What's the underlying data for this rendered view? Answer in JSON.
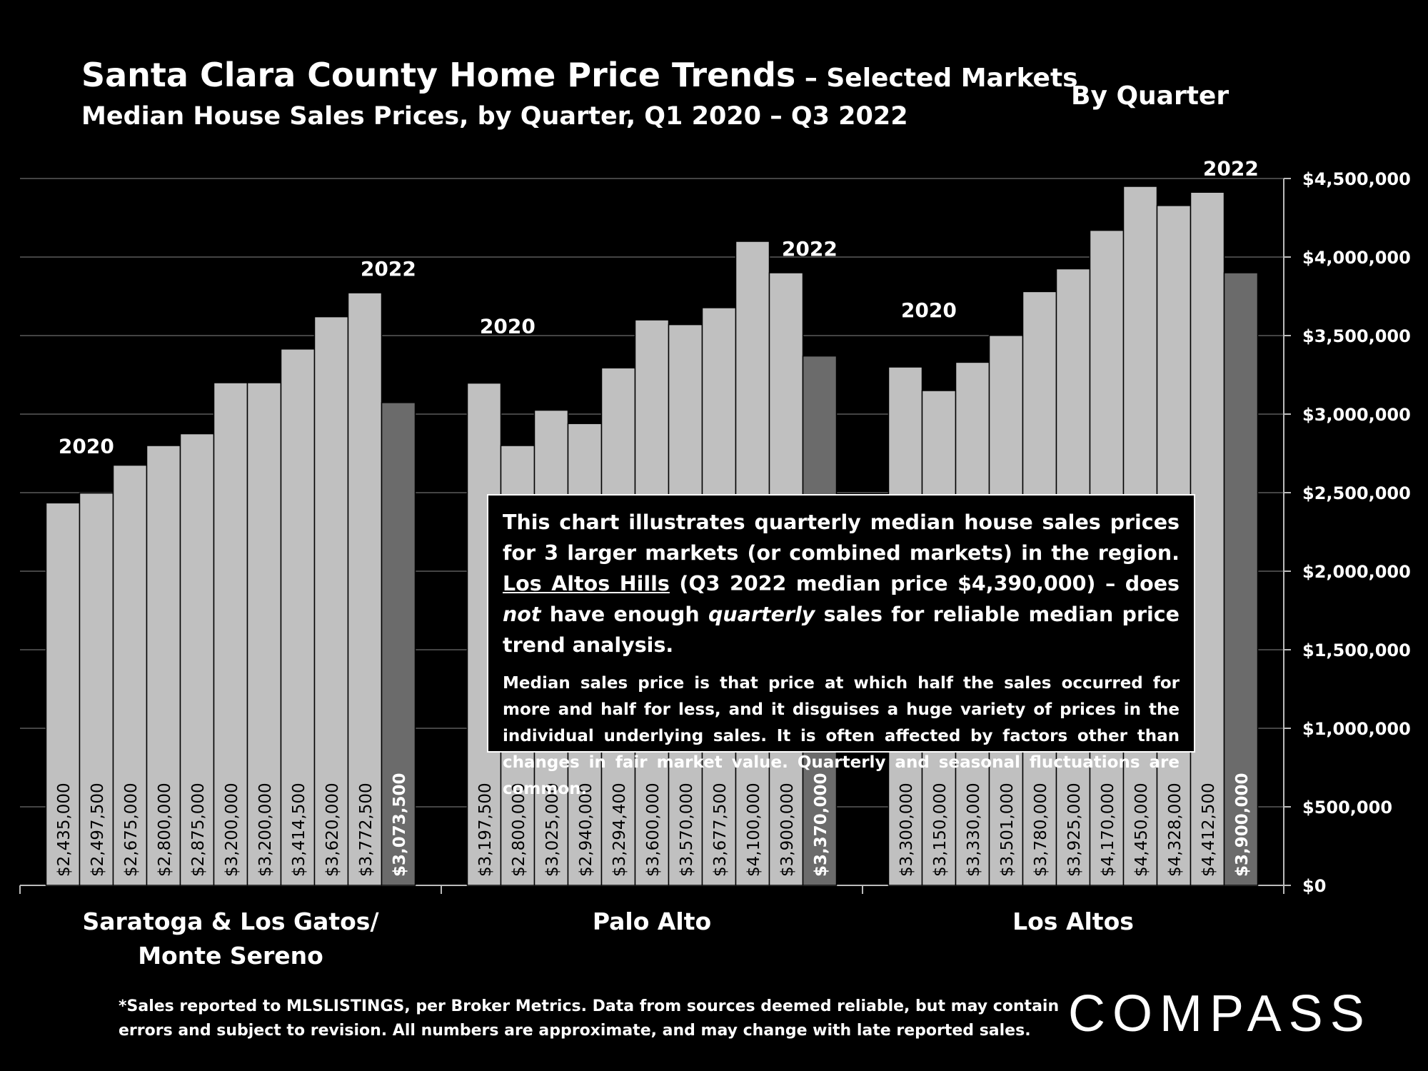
{
  "title": {
    "main": "Santa Clara County Home Price Trends",
    "suffix": " – Selected Markets",
    "subtitle": "Median House Sales Prices, by Quarter, Q1 2020 – Q3 2022",
    "by_quarter": "By Quarter"
  },
  "info_box": {
    "p1_part1": "This chart illustrates quarterly median house sales prices for 3 larger markets (or combined markets) in the region. ",
    "p1_link": "Los Altos Hills",
    "p1_part2": " (Q3 2022 median price $4,390,000) – does ",
    "p1_not": "not",
    "p1_part3": " have enough ",
    "p1_quarterly": "quarterly",
    "p1_part4": " sales for reliable median price trend analysis.",
    "p2": "Median sales price is that price at which half the sales occurred for more and half for less, and it disguises a huge variety of prices in the individual underlying sales. It is often affected by factors other than changes in fair market value. Quarterly and seasonal fluctuations are common."
  },
  "footnote": {
    "line1": "*Sales reported to MLSLISTINGS, per Broker Metrics. Data from sources deemed reliable, but may contain",
    "line2": "errors and subject to revision. All numbers are approximate, and may change with late reported sales."
  },
  "logo": {
    "text": "COMPASS"
  },
  "colors": {
    "bar": "#c0c0c0",
    "bar_latest": "#6b6b6b",
    "background": "#000000",
    "grid": "#5a5a5a",
    "text": "#ffffff"
  },
  "chart_data": {
    "type": "bar",
    "y_ticks": [
      "$0",
      "$500,000",
      "$1,000,000",
      "$1,500,000",
      "$2,000,000",
      "$2,500,000",
      "$3,000,000",
      "$3,500,000",
      "$4,000,000",
      "$4,500,000"
    ],
    "ylim": [
      0,
      4500000
    ],
    "grid": true,
    "groups": [
      {
        "name": "Saratoga & Los Gatos/",
        "name_line2": "Monte Sereno",
        "year_start": "2020",
        "year_end": "2022",
        "values": [
          2435000,
          2497500,
          2675000,
          2800000,
          2875000,
          3200000,
          3200000,
          3414500,
          3620000,
          3772500,
          3073500
        ],
        "labels": [
          "$2,435,000",
          "$2,497,500",
          "$2,675,000",
          "$2,800,000",
          "$2,875,000",
          "$3,200,000",
          "$3,200,000",
          "$3,414,500",
          "$3,620,000",
          "$3,772,500",
          "$3,073,500"
        ]
      },
      {
        "name": "Palo Alto",
        "name_line2": "",
        "year_start": "2020",
        "year_end": "2022",
        "values": [
          3197500,
          2800000,
          3025000,
          2940000,
          3294400,
          3600000,
          3570000,
          3677500,
          4100000,
          3900000,
          3370000
        ],
        "labels": [
          "$3,197,500",
          "$2,800,000",
          "$3,025,000",
          "$2,940,000",
          "$3,294,400",
          "$3,600,000",
          "$3,570,000",
          "$3,677,500",
          "$4,100,000",
          "$3,900,000",
          "$3,370,000"
        ]
      },
      {
        "name": "Los Altos",
        "name_line2": "",
        "year_start": "2020",
        "year_end": "2022",
        "values": [
          3300000,
          3150000,
          3330000,
          3501000,
          3780000,
          3925000,
          4170000,
          4450000,
          4328000,
          4412500,
          3900000
        ],
        "labels": [
          "$3,300,000",
          "$3,150,000",
          "$3,330,000",
          "$3,501,000",
          "$3,780,000",
          "$3,925,000",
          "$4,170,000",
          "$4,450,000",
          "$4,328,000",
          "$4,412,500",
          "$3,900,000"
        ]
      }
    ]
  }
}
